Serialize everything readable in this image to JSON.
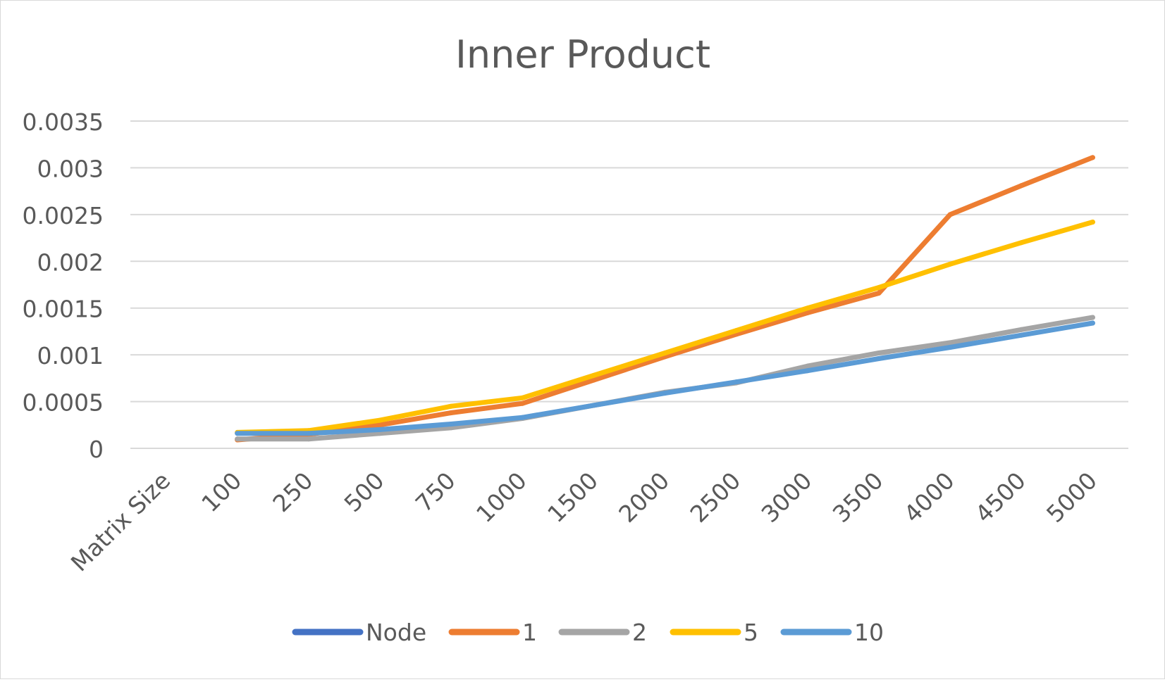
{
  "chart_data": {
    "type": "line",
    "title": "Inner Product",
    "xlabel": "",
    "ylabel": "",
    "categories": [
      "Matrix Size",
      "100",
      "250",
      "500",
      "750",
      "1000",
      "1500",
      "2000",
      "2500",
      "3000",
      "3500",
      "4000",
      "4500",
      "5000"
    ],
    "y_ticks": [
      "0",
      "0.0005",
      "0.001",
      "0.0015",
      "0.002",
      "0.0025",
      "0.003",
      "0.0035"
    ],
    "ylim": [
      0,
      0.0035
    ],
    "grid": true,
    "legend": "bottom",
    "series": [
      {
        "name": "Node",
        "color": "#4472C4",
        "values": [
          null,
          null,
          null,
          null,
          null,
          null,
          null,
          null,
          null,
          null,
          null,
          null,
          null,
          null
        ]
      },
      {
        "name": "1",
        "color": "#ED7D31",
        "values": [
          null,
          9e-05,
          0.00015,
          0.00025,
          0.00038,
          0.00048,
          0.00073,
          0.00098,
          0.00122,
          0.00145,
          0.00166,
          0.0025,
          0.00281,
          0.00311
        ]
      },
      {
        "name": "2",
        "color": "#A5A5A5",
        "values": [
          null,
          0.0001,
          0.0001,
          0.00016,
          0.00022,
          0.00032,
          0.00046,
          0.0006,
          0.0007,
          0.00088,
          0.00102,
          0.00113,
          0.00127,
          0.0014
        ]
      },
      {
        "name": "5",
        "color": "#FFC000",
        "values": [
          null,
          0.00017,
          0.00019,
          0.0003,
          0.00045,
          0.00054,
          0.00078,
          0.00102,
          0.00126,
          0.0015,
          0.00172,
          0.00197,
          0.0022,
          0.00242
        ]
      },
      {
        "name": "10",
        "color": "#5B9BD5",
        "values": [
          null,
          0.00016,
          0.00016,
          0.0002,
          0.00026,
          0.00033,
          0.00046,
          0.00059,
          0.00071,
          0.00083,
          0.00096,
          0.00108,
          0.00121,
          0.00134
        ]
      }
    ]
  }
}
